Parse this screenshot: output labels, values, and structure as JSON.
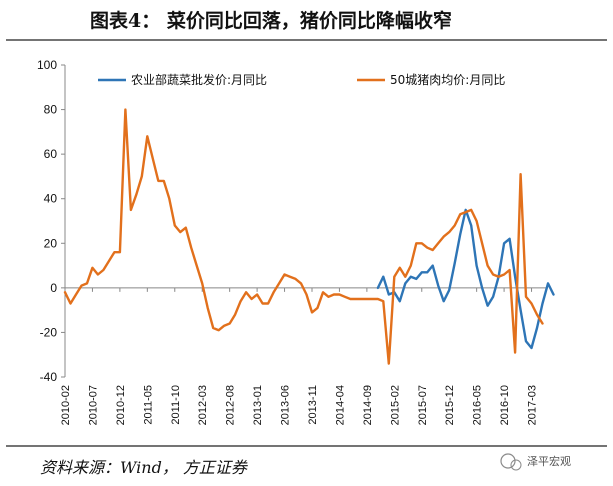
{
  "header": {
    "title": "图表4：  菜价同比回落，猪价同比降幅收窄"
  },
  "footer": {
    "source": "资料来源：Wind， 方正证券",
    "watermark": "泽平宏观"
  },
  "colors": {
    "vegetable": "#2e75b6",
    "pork": "#e2701c",
    "axis": "#888888",
    "rule": "#222222"
  },
  "chart_data": {
    "type": "line",
    "title": "",
    "xlabel": "",
    "ylabel": "",
    "ylim": [
      -40,
      100
    ],
    "yticks": [
      -40,
      -20,
      0,
      20,
      40,
      60,
      80,
      100
    ],
    "grid": false,
    "legend_position": "top",
    "x_range": [
      "2010-02",
      "2017-06"
    ],
    "xticks": [
      "2010-02",
      "2010-07",
      "2010-12",
      "2011-05",
      "2011-10",
      "2012-03",
      "2012-08",
      "2013-01",
      "2013-06",
      "2013-11",
      "2014-04",
      "2014-09",
      "2015-02",
      "2015-07",
      "2015-12",
      "2016-05",
      "2016-10",
      "2017-03"
    ],
    "series": [
      {
        "name": "农业部蔬菜批发价:月同比",
        "color": "#2e75b6",
        "points": [
          [
            "2014-11",
            0
          ],
          [
            "2014-12",
            5
          ],
          [
            "2015-01",
            -3
          ],
          [
            "2015-02",
            -2
          ],
          [
            "2015-03",
            -6
          ],
          [
            "2015-04",
            2
          ],
          [
            "2015-05",
            5
          ],
          [
            "2015-06",
            4
          ],
          [
            "2015-07",
            7
          ],
          [
            "2015-08",
            7
          ],
          [
            "2015-09",
            10
          ],
          [
            "2015-10",
            1
          ],
          [
            "2015-11",
            -6
          ],
          [
            "2015-12",
            -1
          ],
          [
            "2016-01",
            11
          ],
          [
            "2016-02",
            24
          ],
          [
            "2016-03",
            35
          ],
          [
            "2016-04",
            28
          ],
          [
            "2016-05",
            10
          ],
          [
            "2016-06",
            0
          ],
          [
            "2016-07",
            -8
          ],
          [
            "2016-08",
            -4
          ],
          [
            "2016-09",
            5
          ],
          [
            "2016-10",
            20
          ],
          [
            "2016-11",
            22
          ],
          [
            "2016-12",
            5
          ],
          [
            "2017-01",
            -10
          ],
          [
            "2017-02",
            -24
          ],
          [
            "2017-03",
            -27
          ],
          [
            "2017-04",
            -18
          ],
          [
            "2017-05",
            -7
          ],
          [
            "2017-06",
            2
          ],
          [
            "2017-07",
            -3
          ]
        ]
      },
      {
        "name": "50城猪肉均价:月同比",
        "color": "#e2701c",
        "points": [
          [
            "2010-02",
            -2
          ],
          [
            "2010-03",
            -7
          ],
          [
            "2010-04",
            -3
          ],
          [
            "2010-05",
            1
          ],
          [
            "2010-06",
            2
          ],
          [
            "2010-07",
            9
          ],
          [
            "2010-08",
            6
          ],
          [
            "2010-09",
            8
          ],
          [
            "2010-10",
            12
          ],
          [
            "2010-11",
            16
          ],
          [
            "2010-12",
            16
          ],
          [
            "2011-01",
            80
          ],
          [
            "2011-02",
            35
          ],
          [
            "2011-03",
            42
          ],
          [
            "2011-04",
            50
          ],
          [
            "2011-05",
            68
          ],
          [
            "2011-06",
            58
          ],
          [
            "2011-07",
            48
          ],
          [
            "2011-08",
            48
          ],
          [
            "2011-09",
            40
          ],
          [
            "2011-10",
            28
          ],
          [
            "2011-11",
            25
          ],
          [
            "2011-12",
            27
          ],
          [
            "2012-01",
            18
          ],
          [
            "2012-02",
            10
          ],
          [
            "2012-03",
            2
          ],
          [
            "2012-04",
            -9
          ],
          [
            "2012-05",
            -18
          ],
          [
            "2012-06",
            -19
          ],
          [
            "2012-07",
            -17
          ],
          [
            "2012-08",
            -16
          ],
          [
            "2012-09",
            -12
          ],
          [
            "2012-10",
            -6
          ],
          [
            "2012-11",
            -2
          ],
          [
            "2012-12",
            -5
          ],
          [
            "2013-01",
            -3
          ],
          [
            "2013-02",
            -7
          ],
          [
            "2013-03",
            -7
          ],
          [
            "2013-04",
            -2
          ],
          [
            "2013-05",
            2
          ],
          [
            "2013-06",
            6
          ],
          [
            "2013-07",
            5
          ],
          [
            "2013-08",
            4
          ],
          [
            "2013-09",
            2
          ],
          [
            "2013-10",
            -3
          ],
          [
            "2013-11",
            -11
          ],
          [
            "2013-12",
            -9
          ],
          [
            "2014-01",
            -2
          ],
          [
            "2014-02",
            -4
          ],
          [
            "2014-03",
            -3
          ],
          [
            "2014-04",
            -3
          ],
          [
            "2014-05",
            -4
          ],
          [
            "2014-06",
            -5
          ],
          [
            "2014-07",
            -5
          ],
          [
            "2014-08",
            -5
          ],
          [
            "2014-09",
            -5
          ],
          [
            "2014-10",
            -5
          ],
          [
            "2014-11",
            -5
          ],
          [
            "2014-12",
            -6
          ],
          [
            "2015-01",
            -34
          ],
          [
            "2015-02",
            5
          ],
          [
            "2015-03",
            9
          ],
          [
            "2015-04",
            5
          ],
          [
            "2015-05",
            10
          ],
          [
            "2015-06",
            20
          ],
          [
            "2015-07",
            20
          ],
          [
            "2015-08",
            18
          ],
          [
            "2015-09",
            17
          ],
          [
            "2015-10",
            20
          ],
          [
            "2015-11",
            23
          ],
          [
            "2015-12",
            25
          ],
          [
            "2016-01",
            28
          ],
          [
            "2016-02",
            33
          ],
          [
            "2016-03",
            34
          ],
          [
            "2016-04",
            35
          ],
          [
            "2016-05",
            30
          ],
          [
            "2016-06",
            20
          ],
          [
            "2016-07",
            10
          ],
          [
            "2016-08",
            6
          ],
          [
            "2016-09",
            5
          ],
          [
            "2016-10",
            6
          ],
          [
            "2016-11",
            8
          ],
          [
            "2016-12",
            -29
          ],
          [
            "2017-01",
            51
          ],
          [
            "2017-02",
            -4
          ],
          [
            "2017-03",
            -7
          ],
          [
            "2017-04",
            -12
          ],
          [
            "2017-05",
            -16
          ]
        ]
      }
    ]
  }
}
